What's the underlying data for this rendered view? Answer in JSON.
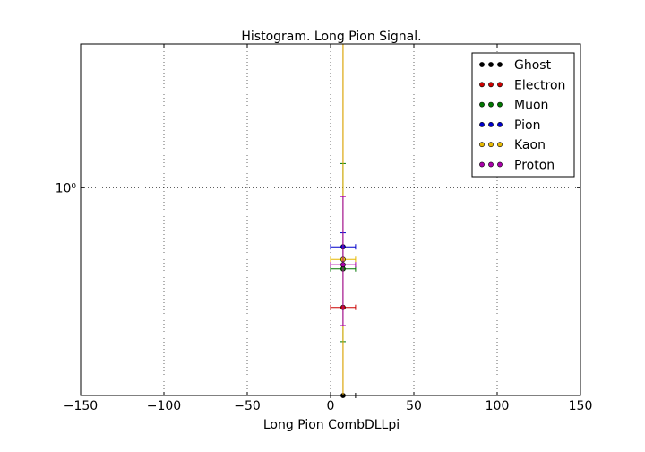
{
  "chart_data": {
    "type": "scatter",
    "title": "Histogram. Long Pion Signal.",
    "xlabel": "Long Pion CombDLLpi",
    "ylabel": "",
    "xlim": [
      -150,
      150
    ],
    "ylim": [
      0.3,
      2.3
    ],
    "yscale": "log",
    "x_ticks": [
      -150,
      -100,
      -50,
      0,
      50,
      100,
      150
    ],
    "x_tick_labels": [
      "−150",
      "−100",
      "−50",
      "0",
      "50",
      "100",
      "150"
    ],
    "y_ticks": [
      1
    ],
    "y_tick_labels": [
      "10⁰"
    ],
    "grid": true,
    "legend_position": "top-right",
    "series": [
      {
        "name": "Ghost",
        "color": "#000000",
        "points": [
          {
            "x": 7.5,
            "y": 0.3,
            "xerr": 7.5,
            "ylo": 0.3,
            "yhi": 2.3
          }
        ]
      },
      {
        "name": "Electron",
        "color": "#cc0000",
        "points": [
          {
            "x": 7.5,
            "y": 0.5,
            "xerr": 7.5,
            "ylo": 0.3,
            "yhi": 2.3
          }
        ]
      },
      {
        "name": "Muon",
        "color": "#007700",
        "points": [
          {
            "x": 7.5,
            "y": 0.625,
            "xerr": 7.5,
            "ylo": 0.41,
            "yhi": 1.15
          }
        ]
      },
      {
        "name": "Pion",
        "color": "#0000cc",
        "points": [
          {
            "x": 7.5,
            "y": 0.71,
            "xerr": 7.5,
            "ylo": 0.66,
            "yhi": 0.77
          }
        ]
      },
      {
        "name": "Kaon",
        "color": "#e6b800",
        "points": [
          {
            "x": 7.5,
            "y": 0.66,
            "xerr": 7.5,
            "ylo": 0.3,
            "yhi": 2.3
          }
        ]
      },
      {
        "name": "Proton",
        "color": "#aa00aa",
        "points": [
          {
            "x": 7.5,
            "y": 0.64,
            "xerr": 7.5,
            "ylo": 0.45,
            "yhi": 0.95
          }
        ]
      }
    ]
  }
}
